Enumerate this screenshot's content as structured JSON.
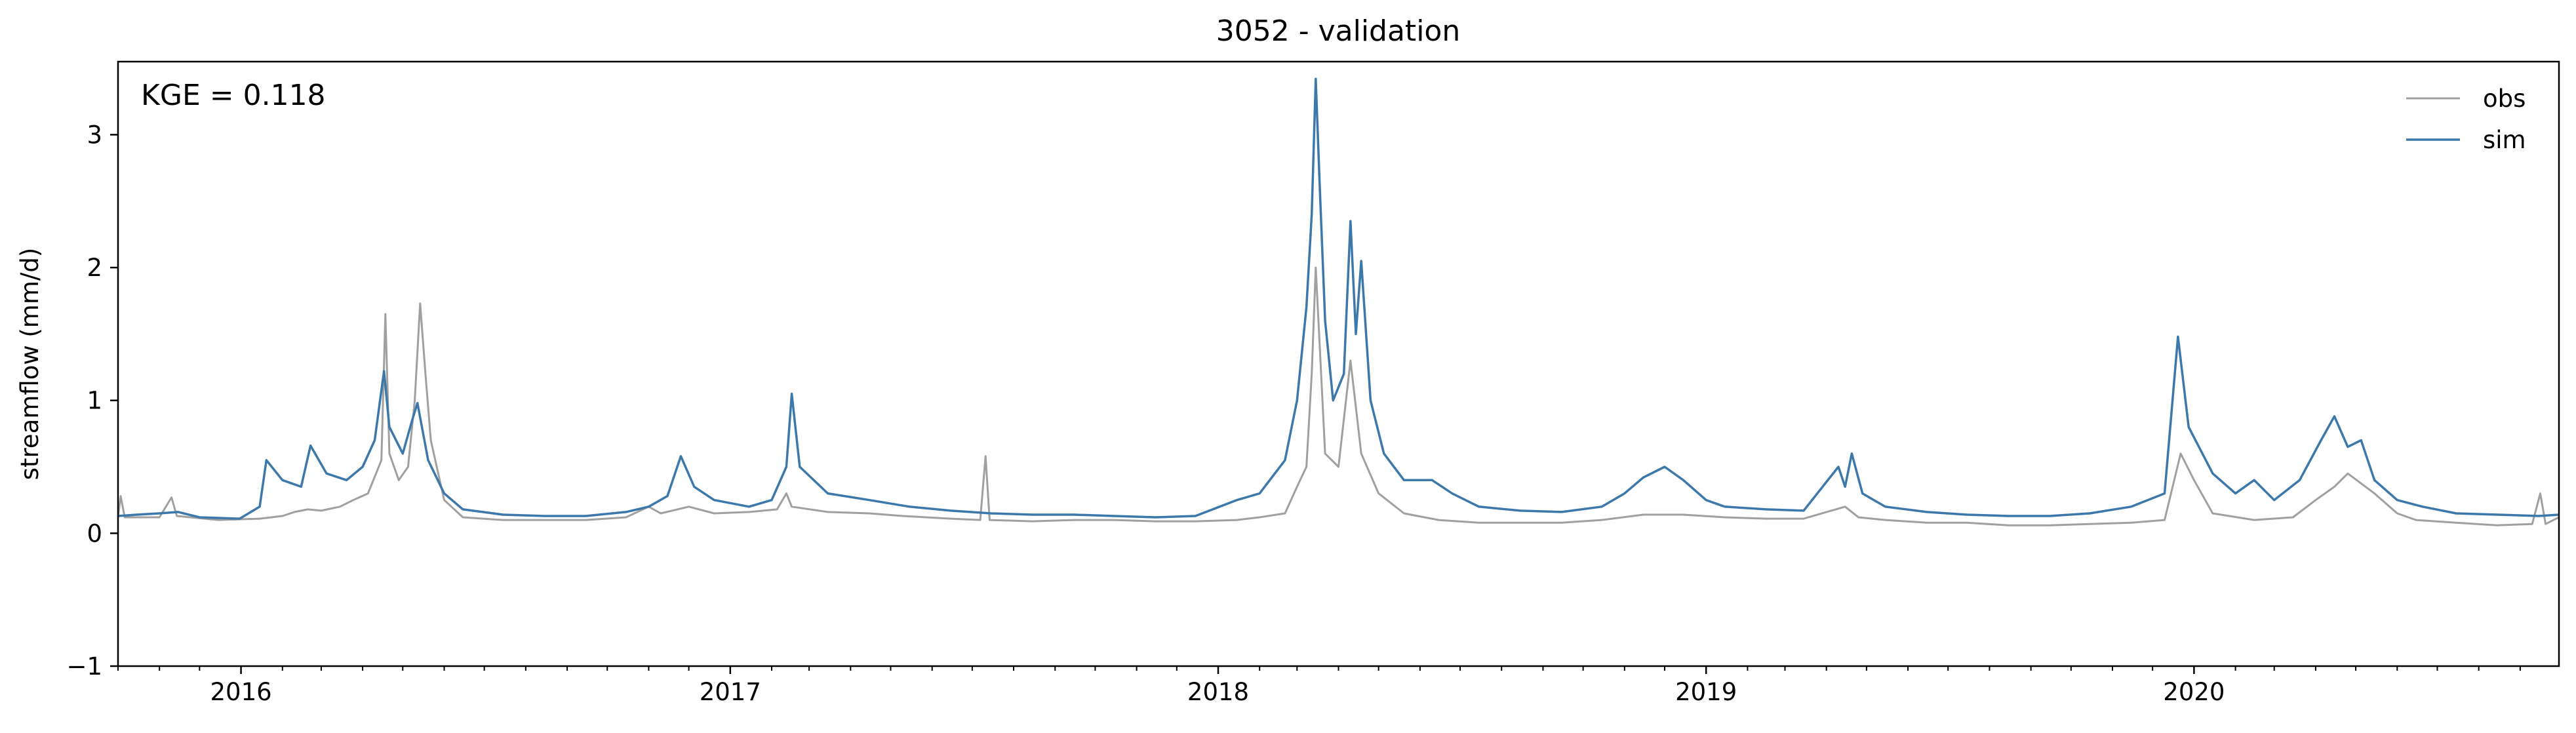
{
  "chart_data": {
    "type": "line",
    "title": "3052 - validation",
    "xlabel": "",
    "ylabel": "streamflow (mm/d)",
    "annotation": "KGE = 0.118",
    "ylim": [
      -1,
      3.55
    ],
    "xlim": [
      "2015-10-01",
      "2020-09-30"
    ],
    "yticks": [
      -1,
      0,
      1,
      2,
      3
    ],
    "xticks": [
      {
        "date": "2016-01-01",
        "label": "2016"
      },
      {
        "date": "2017-01-01",
        "label": "2017"
      },
      {
        "date": "2018-01-01",
        "label": "2018"
      },
      {
        "date": "2019-01-01",
        "label": "2019"
      },
      {
        "date": "2020-01-01",
        "label": "2020"
      }
    ],
    "grid": false,
    "legend_position": "top-right",
    "series": [
      {
        "name": "obs",
        "color": "#a0a0a0",
        "points": [
          [
            "2015-10-01",
            0.12
          ],
          [
            "2015-10-03",
            0.28
          ],
          [
            "2015-10-06",
            0.12
          ],
          [
            "2015-11-01",
            0.12
          ],
          [
            "2015-11-10",
            0.27
          ],
          [
            "2015-11-14",
            0.13
          ],
          [
            "2015-12-15",
            0.1
          ],
          [
            "2016-01-15",
            0.11
          ],
          [
            "2016-02-01",
            0.13
          ],
          [
            "2016-02-10",
            0.16
          ],
          [
            "2016-02-20",
            0.18
          ],
          [
            "2016-03-01",
            0.17
          ],
          [
            "2016-03-15",
            0.2
          ],
          [
            "2016-03-25",
            0.25
          ],
          [
            "2016-04-05",
            0.3
          ],
          [
            "2016-04-15",
            0.55
          ],
          [
            "2016-04-18",
            1.65
          ],
          [
            "2016-04-21",
            0.6
          ],
          [
            "2016-04-28",
            0.4
          ],
          [
            "2016-05-05",
            0.5
          ],
          [
            "2016-05-10",
            1.0
          ],
          [
            "2016-05-14",
            1.73
          ],
          [
            "2016-05-18",
            1.2
          ],
          [
            "2016-05-22",
            0.7
          ],
          [
            "2016-06-01",
            0.25
          ],
          [
            "2016-06-15",
            0.12
          ],
          [
            "2016-07-15",
            0.1
          ],
          [
            "2016-08-15",
            0.1
          ],
          [
            "2016-09-15",
            0.1
          ],
          [
            "2016-10-15",
            0.12
          ],
          [
            "2016-11-01",
            0.2
          ],
          [
            "2016-11-10",
            0.15
          ],
          [
            "2016-12-01",
            0.2
          ],
          [
            "2016-12-20",
            0.15
          ],
          [
            "2017-01-15",
            0.16
          ],
          [
            "2017-02-05",
            0.18
          ],
          [
            "2017-02-12",
            0.3
          ],
          [
            "2017-02-16",
            0.2
          ],
          [
            "2017-03-15",
            0.16
          ],
          [
            "2017-04-15",
            0.15
          ],
          [
            "2017-05-10",
            0.13
          ],
          [
            "2017-06-15",
            0.11
          ],
          [
            "2017-07-07",
            0.1
          ],
          [
            "2017-07-11",
            0.58
          ],
          [
            "2017-07-14",
            0.1
          ],
          [
            "2017-08-15",
            0.09
          ],
          [
            "2017-09-15",
            0.1
          ],
          [
            "2017-10-15",
            0.1
          ],
          [
            "2017-11-15",
            0.09
          ],
          [
            "2017-12-15",
            0.09
          ],
          [
            "2018-01-15",
            0.1
          ],
          [
            "2018-02-01",
            0.12
          ],
          [
            "2018-02-20",
            0.15
          ],
          [
            "2018-03-01",
            0.35
          ],
          [
            "2018-03-08",
            0.5
          ],
          [
            "2018-03-12",
            1.2
          ],
          [
            "2018-03-15",
            2.0
          ],
          [
            "2018-03-18",
            1.4
          ],
          [
            "2018-03-22",
            0.6
          ],
          [
            "2018-04-01",
            0.5
          ],
          [
            "2018-04-10",
            1.3
          ],
          [
            "2018-04-18",
            0.6
          ],
          [
            "2018-05-01",
            0.3
          ],
          [
            "2018-05-20",
            0.15
          ],
          [
            "2018-06-15",
            0.1
          ],
          [
            "2018-07-15",
            0.08
          ],
          [
            "2018-08-15",
            0.08
          ],
          [
            "2018-09-15",
            0.08
          ],
          [
            "2018-10-15",
            0.1
          ],
          [
            "2018-11-15",
            0.14
          ],
          [
            "2018-12-15",
            0.14
          ],
          [
            "2019-01-15",
            0.12
          ],
          [
            "2019-02-15",
            0.11
          ],
          [
            "2019-03-15",
            0.11
          ],
          [
            "2019-04-15",
            0.2
          ],
          [
            "2019-04-25",
            0.12
          ],
          [
            "2019-05-15",
            0.1
          ],
          [
            "2019-06-15",
            0.08
          ],
          [
            "2019-07-15",
            0.08
          ],
          [
            "2019-08-15",
            0.06
          ],
          [
            "2019-09-15",
            0.06
          ],
          [
            "2019-10-15",
            0.07
          ],
          [
            "2019-11-15",
            0.08
          ],
          [
            "2019-12-10",
            0.1
          ],
          [
            "2019-12-22",
            0.6
          ],
          [
            "2020-01-01",
            0.4
          ],
          [
            "2020-01-15",
            0.15
          ],
          [
            "2020-02-15",
            0.1
          ],
          [
            "2020-03-15",
            0.12
          ],
          [
            "2020-04-01",
            0.25
          ],
          [
            "2020-04-15",
            0.35
          ],
          [
            "2020-04-25",
            0.45
          ],
          [
            "2020-05-15",
            0.3
          ],
          [
            "2020-06-01",
            0.15
          ],
          [
            "2020-06-15",
            0.1
          ],
          [
            "2020-07-15",
            0.08
          ],
          [
            "2020-08-15",
            0.06
          ],
          [
            "2020-09-10",
            0.07
          ],
          [
            "2020-09-16",
            0.3
          ],
          [
            "2020-09-20",
            0.07
          ],
          [
            "2020-09-30",
            0.12
          ]
        ]
      },
      {
        "name": "sim",
        "color": "#3c78aa",
        "points": [
          [
            "2015-10-01",
            0.13
          ],
          [
            "2015-10-15",
            0.14
          ],
          [
            "2015-11-01",
            0.15
          ],
          [
            "2015-11-15",
            0.16
          ],
          [
            "2015-12-01",
            0.12
          ],
          [
            "2015-12-31",
            0.11
          ],
          [
            "2016-01-15",
            0.2
          ],
          [
            "2016-01-20",
            0.55
          ],
          [
            "2016-02-01",
            0.4
          ],
          [
            "2016-02-15",
            0.35
          ],
          [
            "2016-02-22",
            0.66
          ],
          [
            "2016-03-05",
            0.45
          ],
          [
            "2016-03-20",
            0.4
          ],
          [
            "2016-04-01",
            0.5
          ],
          [
            "2016-04-10",
            0.7
          ],
          [
            "2016-04-17",
            1.22
          ],
          [
            "2016-04-21",
            0.8
          ],
          [
            "2016-05-01",
            0.6
          ],
          [
            "2016-05-08",
            0.85
          ],
          [
            "2016-05-12",
            0.98
          ],
          [
            "2016-05-20",
            0.55
          ],
          [
            "2016-06-01",
            0.3
          ],
          [
            "2016-06-15",
            0.18
          ],
          [
            "2016-07-15",
            0.14
          ],
          [
            "2016-08-15",
            0.13
          ],
          [
            "2016-09-15",
            0.13
          ],
          [
            "2016-10-15",
            0.16
          ],
          [
            "2016-11-01",
            0.2
          ],
          [
            "2016-11-15",
            0.28
          ],
          [
            "2016-11-25",
            0.58
          ],
          [
            "2016-12-05",
            0.35
          ],
          [
            "2016-12-20",
            0.25
          ],
          [
            "2017-01-15",
            0.2
          ],
          [
            "2017-02-01",
            0.25
          ],
          [
            "2017-02-12",
            0.5
          ],
          [
            "2017-02-16",
            1.05
          ],
          [
            "2017-02-22",
            0.5
          ],
          [
            "2017-03-15",
            0.3
          ],
          [
            "2017-04-15",
            0.25
          ],
          [
            "2017-05-15",
            0.2
          ],
          [
            "2017-06-15",
            0.17
          ],
          [
            "2017-07-15",
            0.15
          ],
          [
            "2017-08-15",
            0.14
          ],
          [
            "2017-09-15",
            0.14
          ],
          [
            "2017-10-15",
            0.13
          ],
          [
            "2017-11-15",
            0.12
          ],
          [
            "2017-12-15",
            0.13
          ],
          [
            "2018-01-15",
            0.25
          ],
          [
            "2018-02-01",
            0.3
          ],
          [
            "2018-02-20",
            0.55
          ],
          [
            "2018-03-01",
            1.0
          ],
          [
            "2018-03-08",
            1.7
          ],
          [
            "2018-03-12",
            2.4
          ],
          [
            "2018-03-15",
            3.42
          ],
          [
            "2018-03-18",
            2.6
          ],
          [
            "2018-03-22",
            1.6
          ],
          [
            "2018-03-28",
            1.0
          ],
          [
            "2018-04-05",
            1.2
          ],
          [
            "2018-04-10",
            2.35
          ],
          [
            "2018-04-14",
            1.5
          ],
          [
            "2018-04-18",
            2.05
          ],
          [
            "2018-04-25",
            1.0
          ],
          [
            "2018-05-05",
            0.6
          ],
          [
            "2018-05-20",
            0.4
          ],
          [
            "2018-06-10",
            0.4
          ],
          [
            "2018-06-25",
            0.3
          ],
          [
            "2018-07-15",
            0.2
          ],
          [
            "2018-08-15",
            0.17
          ],
          [
            "2018-09-15",
            0.16
          ],
          [
            "2018-10-15",
            0.2
          ],
          [
            "2018-11-01",
            0.3
          ],
          [
            "2018-11-15",
            0.42
          ],
          [
            "2018-12-01",
            0.5
          ],
          [
            "2018-12-15",
            0.4
          ],
          [
            "2019-01-01",
            0.25
          ],
          [
            "2019-01-15",
            0.2
          ],
          [
            "2019-02-15",
            0.18
          ],
          [
            "2019-03-15",
            0.17
          ],
          [
            "2019-04-10",
            0.5
          ],
          [
            "2019-04-15",
            0.35
          ],
          [
            "2019-04-20",
            0.6
          ],
          [
            "2019-04-28",
            0.3
          ],
          [
            "2019-05-15",
            0.2
          ],
          [
            "2019-06-15",
            0.16
          ],
          [
            "2019-07-15",
            0.14
          ],
          [
            "2019-08-15",
            0.13
          ],
          [
            "2019-09-15",
            0.13
          ],
          [
            "2019-10-15",
            0.15
          ],
          [
            "2019-11-15",
            0.2
          ],
          [
            "2019-12-10",
            0.3
          ],
          [
            "2019-12-20",
            1.48
          ],
          [
            "2019-12-28",
            0.8
          ],
          [
            "2020-01-15",
            0.45
          ],
          [
            "2020-02-01",
            0.3
          ],
          [
            "2020-02-15",
            0.4
          ],
          [
            "2020-03-01",
            0.25
          ],
          [
            "2020-03-20",
            0.4
          ],
          [
            "2020-04-05",
            0.7
          ],
          [
            "2020-04-15",
            0.88
          ],
          [
            "2020-04-25",
            0.65
          ],
          [
            "2020-05-05",
            0.7
          ],
          [
            "2020-05-15",
            0.4
          ],
          [
            "2020-06-01",
            0.25
          ],
          [
            "2020-06-20",
            0.2
          ],
          [
            "2020-07-15",
            0.15
          ],
          [
            "2020-08-15",
            0.14
          ],
          [
            "2020-09-15",
            0.13
          ],
          [
            "2020-09-30",
            0.14
          ]
        ]
      }
    ]
  }
}
